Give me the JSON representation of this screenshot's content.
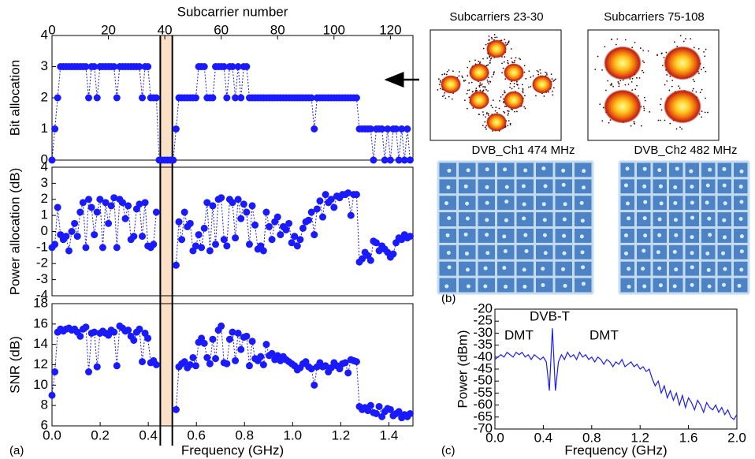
{
  "chart_data": [
    {
      "type": "scatter",
      "label": "(a)",
      "color": "#1a1aff",
      "x2label": "Subcarrier number",
      "x2lim": [
        0,
        128
      ],
      "x2ticks": [
        0,
        20,
        40,
        60,
        80,
        100,
        120
      ],
      "xlabel": "Frequency (GHz)",
      "xlim": [
        0,
        1.5
      ],
      "xticks": [
        {
          "value": 0,
          "label": "0.0"
        },
        0.2,
        0.4,
        0.6,
        0.8,
        {
          "value": 1,
          "label": "1.0"
        },
        1.2,
        1.4
      ],
      "highlight": [
        0.45,
        0.5
      ],
      "x": [
        0,
        1,
        2,
        3,
        4,
        5,
        6,
        7,
        8,
        9,
        10,
        11,
        12,
        13,
        14,
        15,
        16,
        17,
        18,
        19,
        20,
        21,
        22,
        23,
        24,
        25,
        26,
        27,
        28,
        29,
        30,
        31,
        32,
        33,
        34,
        35,
        36,
        37,
        38,
        39,
        40,
        41,
        42,
        43,
        44,
        45,
        46,
        47,
        48,
        49,
        50,
        51,
        52,
        53,
        54,
        55,
        56,
        57,
        58,
        59,
        60,
        61,
        62,
        63,
        64,
        65,
        66,
        67,
        68,
        69,
        70,
        71,
        72,
        73,
        74,
        75,
        76,
        77,
        78,
        79,
        80,
        81,
        82,
        83,
        84,
        85,
        86,
        87,
        88,
        89,
        90,
        91,
        92,
        93,
        94,
        95,
        96,
        97,
        98,
        99,
        100,
        101,
        102,
        103,
        104,
        105,
        106,
        107,
        108,
        109,
        110,
        111,
        112,
        113,
        114,
        115,
        116,
        117,
        118,
        119,
        120,
        121,
        122,
        123,
        124,
        125,
        126,
        127
      ],
      "panels": [
        {
          "ylabel": "Bit allocation",
          "ylim": [
            0,
            4
          ],
          "yticks": [
            0,
            1,
            2,
            3,
            4
          ],
          "values": [
            0,
            1,
            2,
            3,
            3,
            3,
            3,
            3,
            3,
            3,
            3,
            3,
            3,
            2,
            3,
            3,
            2,
            3,
            3,
            3,
            3,
            3,
            3,
            2,
            3,
            3,
            3,
            3,
            3,
            3,
            3,
            3,
            2,
            3,
            3,
            2,
            2,
            2,
            0,
            0,
            0,
            0,
            0,
            0,
            1,
            2,
            2,
            2,
            2,
            2,
            2,
            2,
            3,
            3,
            3,
            2,
            2,
            2,
            3,
            3,
            3,
            3,
            2,
            3,
            3,
            2,
            3,
            2,
            3,
            3,
            2,
            2,
            2,
            2,
            2,
            2,
            2,
            2,
            2,
            2,
            2,
            2,
            2,
            2,
            2,
            2,
            2,
            2,
            2,
            2,
            2,
            2,
            2,
            1,
            2,
            2,
            2,
            2,
            2,
            2,
            2,
            2,
            2,
            2,
            2,
            2,
            2,
            2,
            2,
            1,
            1,
            1,
            1,
            1,
            0,
            1,
            1,
            1,
            0,
            1,
            0,
            1,
            1,
            0,
            1,
            0,
            1,
            0
          ]
        },
        {
          "ylabel": "Power allocation (dB)",
          "ylim": [
            -4,
            4
          ],
          "yticks": [
            -4,
            -3,
            -2,
            -1,
            0,
            1,
            2,
            3,
            4
          ],
          "values": [
            -1,
            -0.8,
            1.5,
            -0.2,
            -0.5,
            -0.3,
            -1.2,
            0,
            0.5,
            -0.3,
            1.2,
            1.8,
            -1,
            2,
            1.5,
            -0.2,
            1.2,
            2,
            -1,
            1.8,
            0.5,
            1.6,
            2.1,
            -1,
            2,
            1.8,
            0.8,
            1.6,
            -0.5,
            -0.3,
            1.4,
            1.7,
            -0.3,
            1.8,
            -0.9,
            -1,
            -0.8,
            1.2,
            null,
            null,
            null,
            null,
            null,
            null,
            -2.1,
            0.6,
            -0.5,
            1.2,
            0.3,
            0.5,
            -1.2,
            -0.9,
            -0.2,
            -1,
            0.2,
            1.8,
            -1.2,
            1.6,
            -0.8,
            2,
            2.1,
            -0.5,
            -0.9,
            2,
            1.8,
            -0.4,
            2,
            0.8,
            1.7,
            1.2,
            -0.8,
            1.6,
            0.4,
            -1.1,
            -0.9,
            -1.2,
            1.2,
            0.3,
            -0.5,
            0.6,
            0.9,
            -0.2,
            0.3,
            0.1,
            0.5,
            -0.7,
            -0.3,
            -0.9,
            -0.5,
            0.2,
            0.6,
            0.7,
            1.2,
            -0.2,
            1.4,
            1.9,
            0.9,
            2.3,
            1.8,
            2,
            1.5,
            2.2,
            2.1,
            2.3,
            2.3,
            2.4,
            1,
            2.3,
            2.3,
            -1.9,
            -1.7,
            -1.3,
            -1.5,
            -1.8,
            -0.6,
            -0.7,
            -1.2,
            -0.9,
            -1.1,
            -1.3,
            -1.6,
            -1.4,
            -0.7,
            -0.4,
            -0.5,
            -0.2,
            -0.4,
            -0.3
          ]
        },
        {
          "ylabel": "SNR (dB)",
          "ylim": [
            6,
            18
          ],
          "yticks": [
            6,
            8,
            10,
            12,
            14,
            16,
            18
          ],
          "values": [
            9,
            11.3,
            15.2,
            15.5,
            15.3,
            15.5,
            15.6,
            15.4,
            15.5,
            15.2,
            14.8,
            15.5,
            15.7,
            11.3,
            15.1,
            15.2,
            11.8,
            15.1,
            15.3,
            15.1,
            14.9,
            15.4,
            15.2,
            11.9,
            15.8,
            15.6,
            15.3,
            15.4,
            14.8,
            14.4,
            15.2,
            15.5,
            12.3,
            15.1,
            14.6,
            12.2,
            12.4,
            12,
            null,
            null,
            null,
            null,
            null,
            null,
            7.6,
            11.8,
            12.1,
            12.3,
            11.7,
            12,
            12.7,
            11.9,
            14.2,
            14.6,
            14.1,
            12.7,
            12.1,
            14.5,
            12.6,
            15.4,
            15.8,
            12.2,
            12.1,
            14.5,
            15.2,
            12.4,
            15.1,
            13.5,
            14.7,
            14.8,
            11.9,
            14.3,
            12.6,
            12.4,
            12.8,
            12,
            14,
            12.9,
            13.1,
            12.5,
            12.9,
            12.4,
            12.8,
            12.5,
            12.3,
            12.1,
            11.9,
            11.5,
            11.7,
            12.1,
            12.3,
            11.8,
            11.6,
            10,
            11.8,
            12.2,
            11.8,
            11.9,
            11.3,
            11.7,
            12.2,
            11.9,
            11.6,
            12.1,
            12.2,
            11.2,
            12.5,
            12.4,
            12.3,
            7.9,
            7.6,
            7.8,
            7.5,
            8,
            7.3,
            7.2,
            7.9,
            6.9,
            7.4,
            7.7,
            7.6,
            7,
            7.2,
            7.4,
            6.8,
            7.1,
            6.9,
            7.2
          ]
        }
      ]
    },
    {
      "type": "line",
      "label": "(c)",
      "color": "#1a1aff",
      "xlabel": "Frequency (GHz)",
      "ylabel": "Power (dBm)",
      "xlim": [
        0,
        2
      ],
      "xticks": [
        {
          "value": 0,
          "label": "0.0"
        },
        0.4,
        0.8,
        1.2,
        1.6,
        {
          "value": 2,
          "label": "2.0"
        }
      ],
      "ylim": [
        -70,
        -20
      ],
      "yticks": [
        -20,
        -25,
        -30,
        -35,
        -40,
        -45,
        -50,
        -55,
        -60,
        -65,
        -70
      ],
      "annotations": [
        "DMT",
        "DVB-T",
        "DMT"
      ],
      "x": [
        0,
        0.025,
        0.05,
        0.075,
        0.1,
        0.125,
        0.15,
        0.175,
        0.2,
        0.225,
        0.25,
        0.275,
        0.3,
        0.325,
        0.35,
        0.375,
        0.4,
        0.425,
        0.45,
        0.475,
        0.5,
        0.525,
        0.55,
        0.575,
        0.6,
        0.625,
        0.65,
        0.675,
        0.7,
        0.725,
        0.75,
        0.775,
        0.8,
        0.825,
        0.85,
        0.875,
        0.9,
        0.925,
        0.95,
        0.975,
        1,
        1.025,
        1.05,
        1.075,
        1.1,
        1.125,
        1.15,
        1.175,
        1.2,
        1.225,
        1.25,
        1.275,
        1.3,
        1.325,
        1.35,
        1.375,
        1.4,
        1.425,
        1.45,
        1.475,
        1.5,
        1.525,
        1.55,
        1.575,
        1.6,
        1.625,
        1.65,
        1.675,
        1.7,
        1.725,
        1.75,
        1.775,
        1.8,
        1.825,
        1.85,
        1.875,
        1.9,
        1.925,
        1.95,
        1.975,
        2
      ],
      "values": [
        -41,
        -40,
        -39,
        -40,
        -38,
        -39,
        -40,
        -38,
        -39,
        -38,
        -40,
        -39,
        -41,
        -39,
        -40,
        -41,
        -40,
        -42,
        -54,
        -28,
        -54,
        -42,
        -39,
        -41,
        -38,
        -40,
        -39,
        -41,
        -38,
        -40,
        -39,
        -41,
        -40,
        -42,
        -40,
        -41,
        -43,
        -41,
        -42,
        -44,
        -42,
        -43,
        -41,
        -44,
        -43,
        -42,
        -44,
        -43,
        -45,
        -44,
        -46,
        -45,
        -49,
        -52,
        -50,
        -55,
        -52,
        -57,
        -54,
        -58,
        -55,
        -60,
        -56,
        -61,
        -57,
        -59,
        -62,
        -58,
        -60,
        -63,
        -59,
        -61,
        -62,
        -60,
        -63,
        -61,
        -64,
        -62,
        -65,
        -66,
        -64
      ]
    }
  ],
  "panel_b": {
    "label": "(b)",
    "images": [
      {
        "title": "Subcarriers 23-30"
      },
      {
        "title": "Subcarriers 75-108"
      },
      {
        "title": "DVB_Ch1 474 MHz"
      },
      {
        "title": "DVB_Ch2 482 MHz"
      }
    ]
  }
}
